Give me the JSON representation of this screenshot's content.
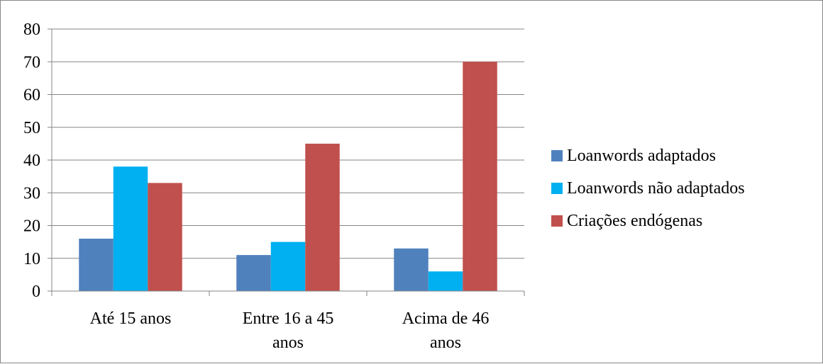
{
  "chart_data": {
    "type": "bar",
    "categories": [
      [
        "Até 15 anos"
      ],
      [
        "Entre 16 a 45",
        "anos"
      ],
      [
        "Acima de 46",
        "anos"
      ]
    ],
    "series": [
      {
        "name": "Loanwords adaptados",
        "color": "#4F81BD",
        "values": [
          16,
          11,
          13
        ]
      },
      {
        "name": "Loanwords não adaptados",
        "color": "#00B0F0",
        "values": [
          38,
          15,
          6
        ]
      },
      {
        "name": "Criações endógenas",
        "color": "#C0504D",
        "values": [
          33,
          45,
          70
        ]
      }
    ],
    "ylim": [
      0,
      80
    ],
    "yticks": [
      0,
      10,
      20,
      30,
      40,
      50,
      60,
      70,
      80
    ],
    "grid": true,
    "legend_position": "right"
  }
}
